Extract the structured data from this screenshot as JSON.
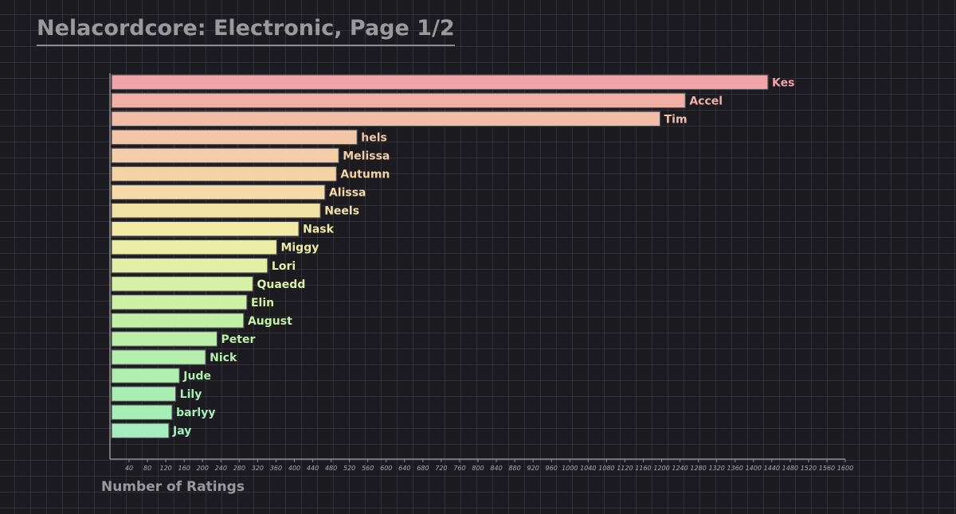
{
  "chart_data": {
    "type": "bar",
    "orientation": "horizontal",
    "title": "Nelacordcore: Electronic, Page 1/2",
    "xlabel": "Number of Ratings",
    "ylabel": "",
    "xlim": [
      0,
      1600
    ],
    "x_tick_step": 40,
    "grid": true,
    "categories": [
      "Kes",
      "Accel",
      "Tim",
      "hels",
      "Melissa",
      "Autumn",
      "Alissa",
      "Neels",
      "Nask",
      "Miggy",
      "Lori",
      "Quaedd",
      "Elin",
      "August",
      "Peter",
      "Nick",
      "Jude",
      "Lily",
      "barlyy",
      "Jay"
    ],
    "values": [
      1430,
      1250,
      1195,
      535,
      495,
      490,
      465,
      455,
      408,
      360,
      340,
      308,
      295,
      288,
      230,
      205,
      148,
      140,
      132,
      125
    ],
    "colors": [
      "#f0a3a8",
      "#f1b0a6",
      "#f1bda7",
      "#f2c6a8",
      "#f3cda8",
      "#f3d2a6",
      "#f3daa6",
      "#f2e2a6",
      "#f0eaa5",
      "#ebeda4",
      "#e2efa5",
      "#d7f0a6",
      "#cbf0a6",
      "#c3f0a7",
      "#bbefaa",
      "#b4efad",
      "#aeefb0",
      "#aaeeb3",
      "#a7eeb7",
      "#a5eec0"
    ]
  }
}
